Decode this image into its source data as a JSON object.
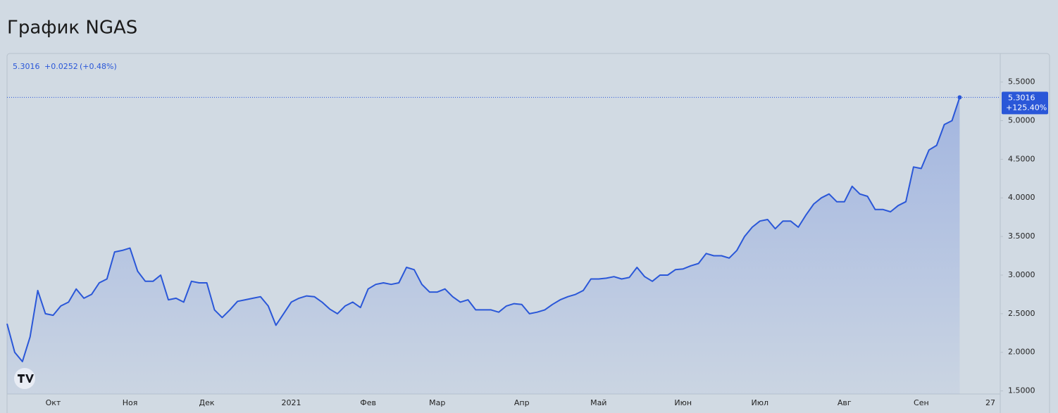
{
  "chart_data": {
    "type": "line",
    "title": "График NGAS",
    "legend": {
      "price": "5.3016",
      "change": "+0.0252",
      "change_pct": "(+0.48%)"
    },
    "price_tag": {
      "price": "5.3016",
      "change_pct": "+125.40%"
    },
    "categories": [
      null,
      null,
      null,
      null,
      null,
      null,
      "Окт",
      null,
      null,
      null,
      null,
      null,
      null,
      null,
      null,
      null,
      "Ноя",
      null,
      null,
      null,
      null,
      null,
      null,
      null,
      null,
      null,
      "Дек",
      null,
      null,
      null,
      null,
      null,
      null,
      null,
      null,
      null,
      null,
      "2021",
      null,
      null,
      null,
      null,
      null,
      null,
      null,
      null,
      null,
      "Фев",
      null,
      null,
      null,
      null,
      null,
      null,
      null,
      null,
      "Мар",
      null,
      null,
      null,
      null,
      null,
      null,
      null,
      null,
      null,
      null,
      "Апр",
      null,
      null,
      null,
      null,
      null,
      null,
      null,
      null,
      null,
      "Май",
      null,
      null,
      null,
      null,
      null,
      null,
      null,
      null,
      null,
      null,
      "Июн",
      null,
      null,
      null,
      null,
      null,
      null,
      null,
      null,
      null,
      "Июл",
      null,
      null,
      null,
      null,
      null,
      null,
      null,
      null,
      null,
      null,
      "Авг",
      null,
      null,
      null,
      null,
      null,
      null,
      null,
      null,
      null,
      "Сен",
      null,
      null,
      null,
      null,
      null,
      null,
      null,
      null,
      "27"
    ],
    "series": [
      {
        "name": "NGAS",
        "color": "#2a57d8",
        "values": [
          2.37,
          2.0,
          1.88,
          2.2,
          2.8,
          2.5,
          2.48,
          2.6,
          2.65,
          2.82,
          2.7,
          2.75,
          2.9,
          2.95,
          3.3,
          3.32,
          3.35,
          3.05,
          2.92,
          2.92,
          3.0,
          2.68,
          2.7,
          2.65,
          2.92,
          2.9,
          2.9,
          2.55,
          2.45,
          2.55,
          2.66,
          2.68,
          2.7,
          2.72,
          2.6,
          2.35,
          2.5,
          2.65,
          2.7,
          2.73,
          2.72,
          2.65,
          2.56,
          2.5,
          2.6,
          2.65,
          2.58,
          2.82,
          2.88,
          2.9,
          2.88,
          2.9,
          3.1,
          3.07,
          2.88,
          2.78,
          2.78,
          2.82,
          2.72,
          2.65,
          2.68,
          2.55,
          2.55,
          2.55,
          2.52,
          2.6,
          2.63,
          2.62,
          2.5,
          2.52,
          2.55,
          2.62,
          2.68,
          2.72,
          2.75,
          2.8,
          2.95,
          2.95,
          2.96,
          2.98,
          2.95,
          2.97,
          3.1,
          2.98,
          2.92,
          3.0,
          3.0,
          3.07,
          3.08,
          3.12,
          3.15,
          3.28,
          3.25,
          3.25,
          3.22,
          3.32,
          3.5,
          3.62,
          3.7,
          3.72,
          3.6,
          3.7,
          3.7,
          3.62,
          3.78,
          3.92,
          4.0,
          4.05,
          3.95,
          3.95,
          4.15,
          4.05,
          4.02,
          3.85,
          3.85,
          3.82,
          3.9,
          3.95,
          4.4,
          4.38,
          4.62,
          4.68,
          4.95,
          5.0,
          5.3016,
          null,
          null,
          null,
          null
        ]
      }
    ],
    "ylim": [
      1.46,
      5.87
    ],
    "yticks": [
      {
        "value": 1.5,
        "label": "1.5000"
      },
      {
        "value": 2,
        "label": "2.0000"
      },
      {
        "value": 2.5,
        "label": "2.5000"
      },
      {
        "value": 3,
        "label": "3.0000"
      },
      {
        "value": 3.5,
        "label": "3.5000"
      },
      {
        "value": 4,
        "label": "4.0000"
      },
      {
        "value": 4.5,
        "label": "4.5000"
      },
      {
        "value": 5,
        "label": "5.0000"
      },
      {
        "value": 5.5,
        "label": "5.5000"
      }
    ],
    "grid": false
  }
}
